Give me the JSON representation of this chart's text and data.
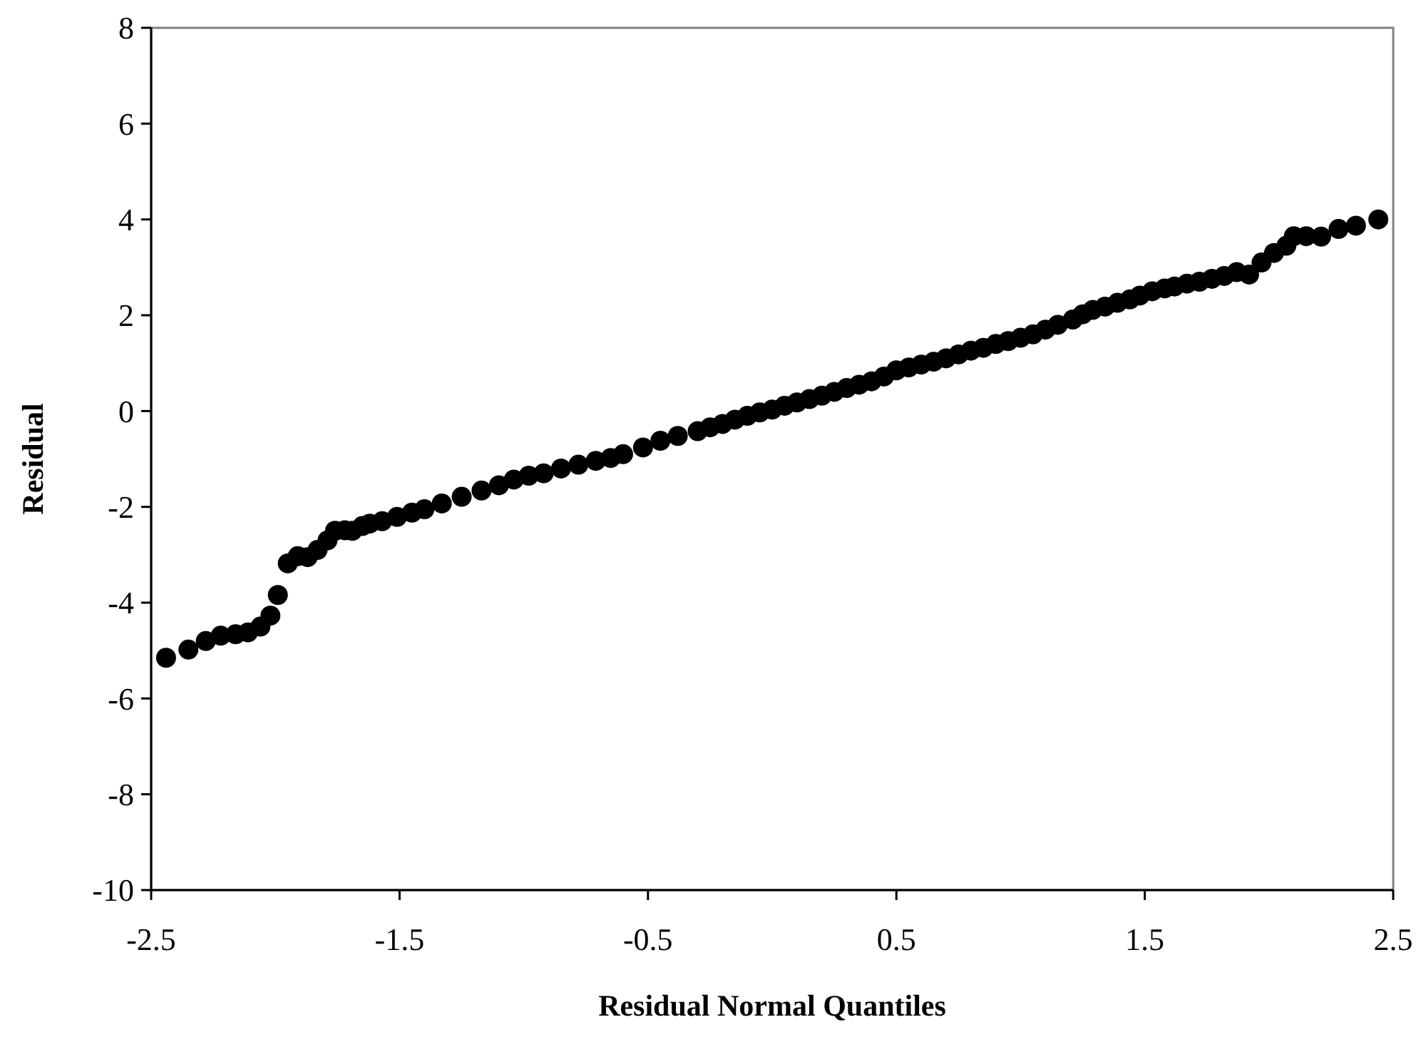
{
  "chart_data": {
    "type": "scatter",
    "xlabel": "Residual Normal Quantiles",
    "ylabel": "Residual",
    "xlim": [
      -2.5,
      2.5
    ],
    "xticks": [
      -2.5,
      -1.5,
      -0.5,
      0.5,
      1.5,
      2.5
    ],
    "ylim": [
      -10,
      8
    ],
    "yticks": [
      -10,
      -8,
      -6,
      -4,
      -2,
      0,
      2,
      4,
      6,
      8
    ],
    "grid": false,
    "marker": "circle",
    "series": [
      {
        "color": "#000000",
        "x": [
          -2.44,
          -2.35,
          -2.28,
          -2.22,
          -2.16,
          -2.11,
          -2.06,
          -2.02,
          -1.99,
          -1.95,
          -1.91,
          -1.87,
          -1.83,
          -1.79,
          -1.76,
          -1.72,
          -1.69,
          -1.65,
          -1.62,
          -1.57,
          -1.51,
          -1.45,
          -1.4,
          -1.33,
          -1.25,
          -1.17,
          -1.1,
          -1.04,
          -0.98,
          -0.92,
          -0.85,
          -0.78,
          -0.71,
          -0.65,
          -0.6,
          -0.52,
          -0.45,
          -0.38,
          -0.3,
          -0.25,
          -0.2,
          -0.15,
          -0.1,
          -0.05,
          0,
          0.05,
          0.1,
          0.15,
          0.2,
          0.25,
          0.3,
          0.35,
          0.4,
          0.45,
          0.5,
          0.55,
          0.6,
          0.65,
          0.7,
          0.75,
          0.8,
          0.85,
          0.9,
          0.95,
          1.0,
          1.05,
          1.1,
          1.15,
          1.21,
          1.25,
          1.29,
          1.34,
          1.39,
          1.44,
          1.48,
          1.53,
          1.58,
          1.62,
          1.67,
          1.72,
          1.77,
          1.82,
          1.87,
          1.92,
          1.97,
          2.02,
          2.07,
          2.1,
          2.15,
          2.21,
          2.28,
          2.35,
          2.44
        ],
        "values": [
          -5.15,
          -4.98,
          -4.8,
          -4.69,
          -4.66,
          -4.62,
          -4.5,
          -4.27,
          -3.84,
          -3.18,
          -3.03,
          -3.05,
          -2.9,
          -2.7,
          -2.5,
          -2.49,
          -2.5,
          -2.4,
          -2.35,
          -2.3,
          -2.21,
          -2.12,
          -2.05,
          -1.93,
          -1.79,
          -1.66,
          -1.55,
          -1.43,
          -1.35,
          -1.3,
          -1.2,
          -1.12,
          -1.04,
          -0.98,
          -0.9,
          -0.76,
          -0.62,
          -0.52,
          -0.42,
          -0.34,
          -0.27,
          -0.18,
          -0.1,
          -0.03,
          0.03,
          0.11,
          0.18,
          0.25,
          0.32,
          0.4,
          0.48,
          0.55,
          0.62,
          0.72,
          0.85,
          0.91,
          0.97,
          1.03,
          1.1,
          1.18,
          1.26,
          1.32,
          1.4,
          1.46,
          1.53,
          1.6,
          1.7,
          1.8,
          1.91,
          2.02,
          2.11,
          2.18,
          2.26,
          2.33,
          2.41,
          2.5,
          2.56,
          2.6,
          2.66,
          2.7,
          2.76,
          2.82,
          2.9,
          2.85,
          3.1,
          3.3,
          3.45,
          3.65,
          3.65,
          3.64,
          3.8,
          3.87,
          4.0
        ]
      }
    ]
  }
}
